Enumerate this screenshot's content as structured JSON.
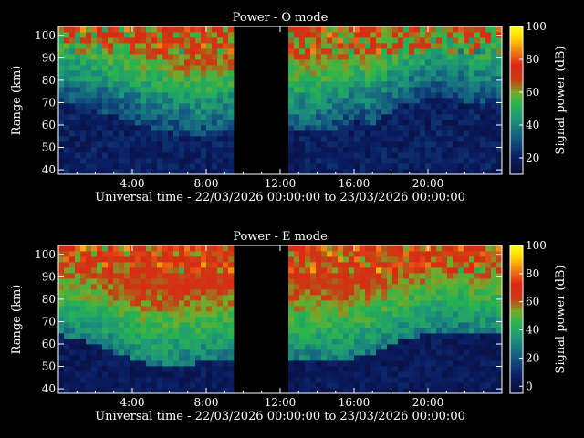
{
  "chart_data": [
    {
      "type": "heatmap",
      "title": "Power - O mode",
      "xlabel": "Universal time - 22/03/2026 00:00:00 to 23/03/2026 00:00:00",
      "ylabel": "Range (km)",
      "xlim": [
        0,
        24
      ],
      "ylim": [
        38,
        104
      ],
      "x_ticks": [
        4,
        8,
        12,
        16,
        20
      ],
      "x_tick_labels": [
        "4:00",
        "8:00",
        "12:00",
        "16:00",
        "20:00"
      ],
      "y_ticks": [
        40,
        50,
        60,
        70,
        80,
        90,
        100
      ],
      "y_tick_labels": [
        "40",
        "50",
        "60",
        "70",
        "80",
        "90",
        "100"
      ],
      "colorbar": {
        "label": "Signal power (dB)",
        "range": [
          10,
          100
        ],
        "ticks": [
          20,
          40,
          60,
          80,
          100
        ],
        "tick_labels": [
          "20",
          "40",
          "60",
          "80",
          "100"
        ]
      },
      "data_gaps_hours": [
        [
          9.5,
          12.4
        ],
        [
          15.95,
          16.05
        ]
      ],
      "echo_lower_edge_km": [
        [
          0,
          75
        ],
        [
          1,
          73
        ],
        [
          2,
          70
        ],
        [
          3,
          68
        ],
        [
          4,
          66
        ],
        [
          5,
          63
        ],
        [
          6,
          61
        ],
        [
          7,
          59
        ],
        [
          8,
          58
        ],
        [
          9,
          60
        ],
        [
          12.4,
          62
        ],
        [
          13,
          61
        ],
        [
          14,
          60
        ],
        [
          15,
          62
        ],
        [
          16,
          66
        ],
        [
          17,
          64
        ],
        [
          18,
          70
        ],
        [
          19,
          74
        ],
        [
          20,
          76
        ],
        [
          21,
          77
        ],
        [
          22,
          75
        ],
        [
          23,
          74
        ],
        [
          24,
          74
        ]
      ],
      "power_peak_db": 100
    },
    {
      "type": "heatmap",
      "title": "Power - E mode",
      "xlabel": "Universal time - 22/03/2026 00:00:00 to 23/03/2026 00:00:00",
      "ylabel": "Range (km)",
      "xlim": [
        0,
        24
      ],
      "ylim": [
        38,
        104
      ],
      "x_ticks": [
        4,
        8,
        12,
        16,
        20
      ],
      "x_tick_labels": [
        "4:00",
        "8:00",
        "12:00",
        "16:00",
        "20:00"
      ],
      "y_ticks": [
        40,
        50,
        60,
        70,
        80,
        90,
        100
      ],
      "y_tick_labels": [
        "40",
        "50",
        "60",
        "70",
        "80",
        "90",
        "100"
      ],
      "colorbar": {
        "label": "Signal power (dB)",
        "range": [
          -5,
          100
        ],
        "ticks": [
          0,
          20,
          40,
          60,
          80,
          100
        ],
        "tick_labels": [
          "0",
          "20",
          "40",
          "60",
          "80",
          "100"
        ]
      },
      "data_gaps_hours": [
        [
          9.5,
          12.4
        ],
        [
          15.95,
          16.05
        ]
      ],
      "echo_lower_edge_km": [
        [
          0,
          68
        ],
        [
          1,
          67
        ],
        [
          2,
          64
        ],
        [
          3,
          60
        ],
        [
          4,
          57
        ],
        [
          5,
          55
        ],
        [
          6,
          54
        ],
        [
          7,
          55
        ],
        [
          8,
          56
        ],
        [
          9,
          57
        ],
        [
          12.4,
          58
        ],
        [
          13,
          57
        ],
        [
          14,
          57
        ],
        [
          15,
          56
        ],
        [
          16,
          58
        ],
        [
          17,
          60
        ],
        [
          18,
          64
        ],
        [
          19,
          67
        ],
        [
          20,
          68
        ],
        [
          21,
          70
        ],
        [
          22,
          70
        ],
        [
          23,
          68
        ],
        [
          24,
          68
        ]
      ],
      "power_peak_db": 100
    }
  ]
}
